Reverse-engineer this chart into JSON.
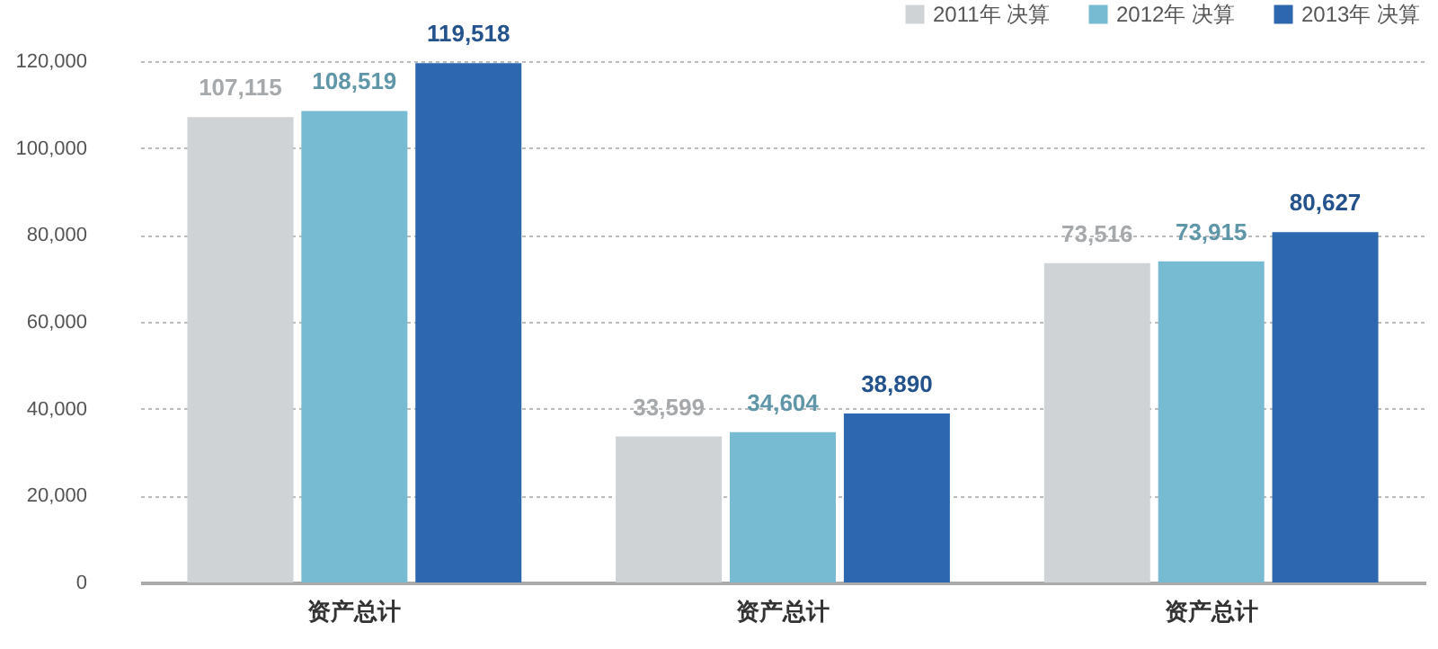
{
  "chart_data": {
    "type": "bar",
    "categories": [
      "资产总计",
      "资产总计",
      "资产总计"
    ],
    "series": [
      {
        "name": "2011年 决算",
        "color": "#d0d3d6",
        "values": [
          107115,
          33599,
          73516
        ],
        "value_labels": [
          "107,115",
          "33,599",
          "73,516"
        ]
      },
      {
        "name": "2012年 决算",
        "color": "#77bbd2",
        "values": [
          108519,
          34604,
          73915
        ],
        "value_labels": [
          "108,519",
          "34,604",
          "73,915"
        ]
      },
      {
        "name": "2013年 决算",
        "color": "#2c67b0",
        "values": [
          119518,
          38890,
          80627
        ],
        "value_labels": [
          "119,518",
          "38,890",
          "80,627"
        ]
      }
    ],
    "ylim": [
      0,
      120000
    ],
    "yticks": [
      0,
      {
        "value": 20000,
        "label": "20,000"
      },
      {
        "value": 40000,
        "label": "40,000"
      },
      {
        "value": 60000,
        "label": "60,000"
      },
      {
        "value": 80000,
        "label": "80,000"
      },
      {
        "value": 100000,
        "label": "100,000"
      },
      {
        "value": 120000,
        "label": "120,000"
      }
    ],
    "grid": "y",
    "legend": "top right"
  }
}
